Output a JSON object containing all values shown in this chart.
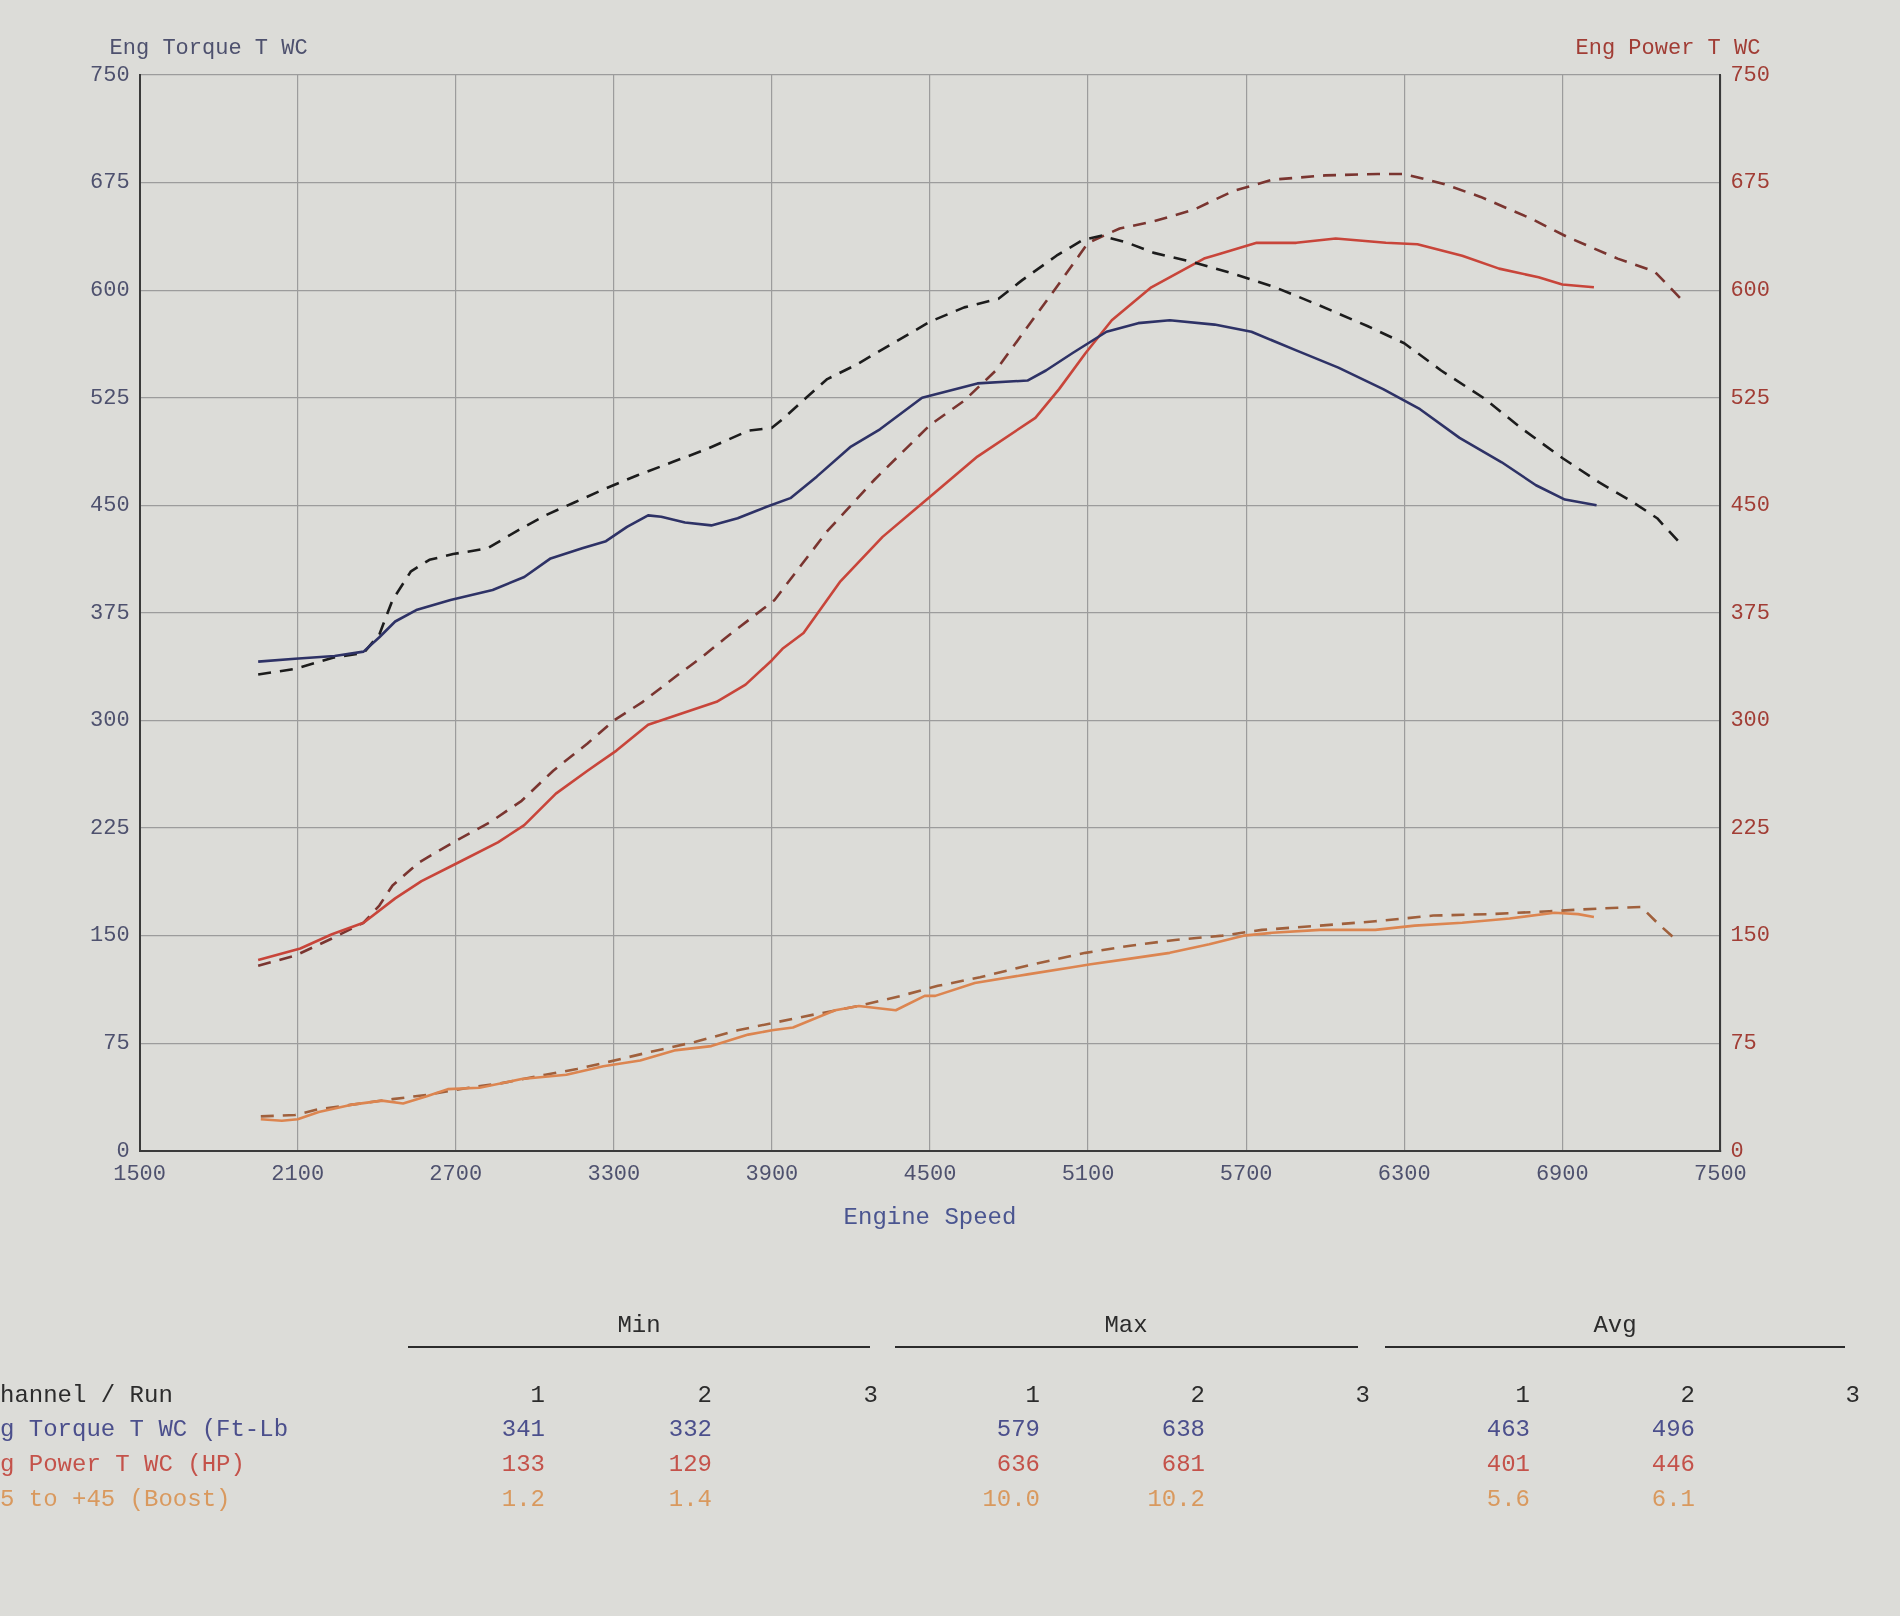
{
  "chart_data": {
    "type": "line",
    "ylabel": "Eng Torque T WC",
    "y2label": "Eng Power T WC",
    "xlabel": "Engine Speed",
    "xlim": [
      1500,
      7500
    ],
    "xticks": [
      1500,
      2100,
      2700,
      3300,
      3900,
      4500,
      5100,
      5700,
      6300,
      6900,
      7500
    ],
    "ylim": [
      0,
      750
    ],
    "yticks": [
      0,
      75,
      150,
      225,
      300,
      375,
      450,
      525,
      600,
      675,
      750
    ],
    "y2lim": [
      0,
      750
    ],
    "y2ticks": [
      0,
      75,
      150,
      225,
      300,
      375,
      450,
      525,
      600,
      675,
      750
    ],
    "grid": true,
    "series": [
      {
        "color": "#2e3266",
        "line_style": "solid",
        "x": [
          1950,
          2090,
          2240,
          2350,
          2410,
          2470,
          2550,
          2680,
          2840,
          2960,
          3060,
          3180,
          3270,
          3350,
          3430,
          3480,
          3570,
          3670,
          3770,
          3880,
          3970,
          4070,
          4200,
          4310,
          4470,
          4680,
          4870,
          4940,
          5040,
          5170,
          5290,
          5410,
          5580,
          5720,
          5890,
          6050,
          6220,
          6360,
          6510,
          6670,
          6800,
          6910,
          7030
        ],
        "values": [
          341,
          343,
          345,
          348,
          358,
          369,
          377,
          384,
          391,
          400,
          413,
          420,
          425,
          435,
          443,
          442,
          438,
          436,
          441,
          449,
          455,
          470,
          491,
          503,
          525,
          535,
          537,
          544,
          556,
          571,
          577,
          579,
          576,
          571,
          558,
          546,
          531,
          517,
          497,
          480,
          464,
          454,
          450
        ]
      },
      {
        "color": "#1c1c1c",
        "line_style": "dashed",
        "x": [
          1950,
          2090,
          2240,
          2350,
          2410,
          2460,
          2530,
          2600,
          2690,
          2820,
          2950,
          3040,
          3150,
          3260,
          3390,
          3520,
          3650,
          3810,
          3900,
          3940,
          4030,
          4110,
          4220,
          4350,
          4500,
          4630,
          4760,
          4850,
          4980,
          5080,
          5150,
          5250,
          5350,
          5490,
          5660,
          5810,
          5970,
          6160,
          6300,
          6440,
          6600,
          6750,
          6900,
          7040,
          7170,
          7260,
          7350
        ],
        "values": [
          332,
          336,
          344,
          347,
          360,
          384,
          404,
          412,
          416,
          420,
          434,
          443,
          452,
          461,
          471,
          480,
          489,
          502,
          504,
          510,
          525,
          538,
          548,
          562,
          578,
          588,
          594,
          607,
          624,
          635,
          638,
          633,
          626,
          620,
          611,
          602,
          590,
          575,
          563,
          544,
          525,
          503,
          483,
          466,
          452,
          441,
          423
        ]
      },
      {
        "color": "#c8453a",
        "line_style": "solid",
        "axis": "y2",
        "x": [
          1950,
          2110,
          2230,
          2350,
          2470,
          2570,
          2710,
          2860,
          2960,
          3080,
          3200,
          3310,
          3430,
          3560,
          3690,
          3800,
          3900,
          3940,
          4020,
          4160,
          4320,
          4500,
          4680,
          4900,
          4990,
          5090,
          5190,
          5340,
          5540,
          5740,
          5890,
          6040,
          6230,
          6350,
          6520,
          6660,
          6810,
          6900,
          7020
        ],
        "values": [
          133,
          141,
          151,
          159,
          176,
          188,
          201,
          215,
          227,
          249,
          265,
          279,
          297,
          305,
          313,
          325,
          342,
          350,
          361,
          397,
          428,
          456,
          484,
          511,
          531,
          556,
          579,
          602,
          622,
          633,
          633,
          636,
          633,
          632,
          624,
          615,
          609,
          604,
          602
        ]
      },
      {
        "color": "#7a3530",
        "line_style": "dashed",
        "axis": "y2",
        "x": [
          1950,
          2090,
          2230,
          2350,
          2410,
          2460,
          2560,
          2700,
          2830,
          2950,
          3070,
          3200,
          3300,
          3410,
          3530,
          3640,
          3720,
          3910,
          4110,
          4290,
          4500,
          4630,
          4750,
          4880,
          4980,
          5100,
          5220,
          5350,
          5500,
          5650,
          5800,
          6000,
          6200,
          6300,
          6450,
          6590,
          6780,
          6920,
          7110,
          7250,
          7350
        ],
        "values": [
          129,
          136,
          148,
          159,
          171,
          185,
          201,
          216,
          229,
          244,
          265,
          284,
          300,
          313,
          330,
          345,
          357,
          384,
          432,
          468,
          506,
          523,
          544,
          577,
          602,
          633,
          643,
          648,
          656,
          669,
          677,
          680,
          681,
          681,
          674,
          665,
          650,
          637,
          622,
          613,
          594
        ]
      },
      {
        "color": "#dc8550",
        "line_style": "solid",
        "x": [
          1960,
          2040,
          2100,
          2180,
          2300,
          2420,
          2500,
          2590,
          2670,
          2790,
          2950,
          3120,
          3260,
          3400,
          3530,
          3670,
          3810,
          3900,
          3980,
          4140,
          4230,
          4370,
          4480,
          4520,
          4670,
          4870,
          5040,
          5110,
          5260,
          5410,
          5560,
          5690,
          5800,
          5980,
          6190,
          6340,
          6520,
          6700,
          6870,
          6960,
          7020
        ],
        "values": [
          22,
          21,
          22,
          27,
          32,
          35,
          33,
          38,
          43,
          44,
          50,
          53,
          59,
          63,
          70,
          73,
          81,
          84,
          86,
          98,
          101,
          98,
          108,
          108,
          117,
          123,
          128,
          130,
          134,
          138,
          144,
          150,
          152,
          154,
          154,
          157,
          159,
          162,
          166,
          165,
          163
        ]
      },
      {
        "color": "#a0603c",
        "line_style": "dashed",
        "x": [
          1960,
          2090,
          2180,
          2300,
          2460,
          2590,
          2750,
          2870,
          3040,
          3160,
          3280,
          3440,
          3610,
          3770,
          3900,
          4060,
          4230,
          4390,
          4530,
          4690,
          4890,
          5090,
          5260,
          5430,
          5610,
          5760,
          5980,
          6190,
          6410,
          6630,
          6850,
          7050,
          7200,
          7260,
          7320
        ],
        "values": [
          24,
          25,
          29,
          32,
          36,
          39,
          44,
          47,
          53,
          57,
          62,
          69,
          76,
          84,
          89,
          95,
          101,
          108,
          115,
          121,
          130,
          138,
          143,
          147,
          150,
          154,
          157,
          160,
          164,
          165,
          167,
          169,
          170,
          159,
          149
        ]
      }
    ],
    "annotations": [
      "Min",
      "Max",
      "Avg",
      "hannel / Run",
      "1",
      "2",
      "3",
      "1",
      "2",
      "3",
      "1",
      "2",
      "3",
      "g Torque T WC (Ft-Lb",
      "341",
      "332",
      "579",
      "638",
      "463",
      "496",
      "g Power T WC (HP)",
      "133",
      "129",
      "636",
      "681",
      "401",
      "446",
      "5 to +45 (Boost)",
      "1.2",
      "1.4",
      "10.0",
      "10.2",
      "5.6",
      "6.1"
    ]
  }
}
